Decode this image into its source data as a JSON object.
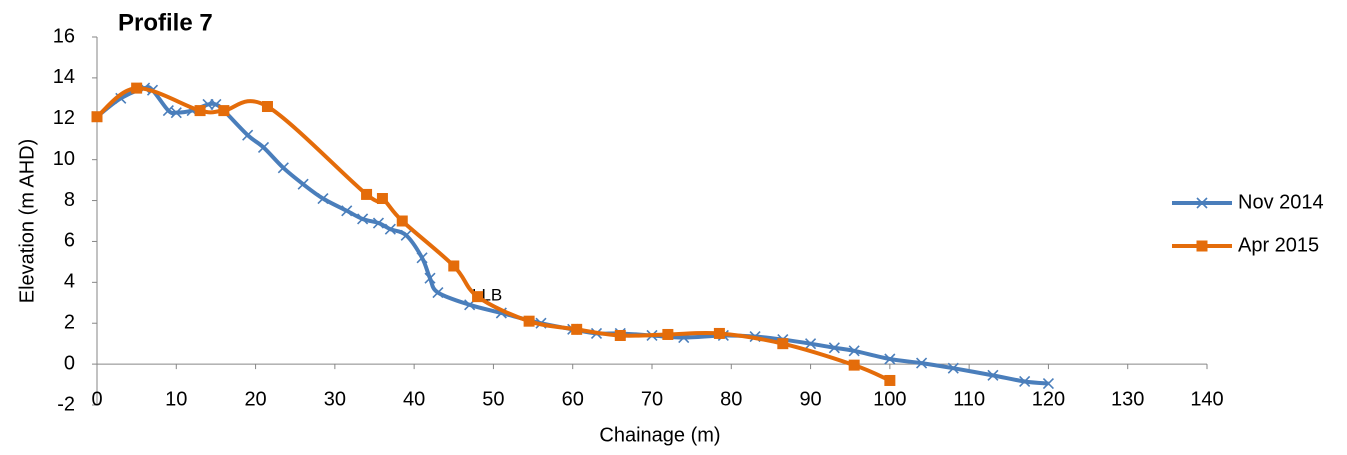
{
  "chart_data": {
    "type": "line",
    "title": "Profile 7",
    "x_label": "Chainage (m)",
    "y_label": "Elevation (m AHD)",
    "xlim": [
      0,
      140
    ],
    "xticks": [
      0,
      10,
      20,
      30,
      40,
      50,
      60,
      70,
      80,
      90,
      100,
      110,
      120,
      130,
      140
    ],
    "ylim": [
      -2,
      16
    ],
    "yticks": [
      -2,
      0,
      2,
      4,
      6,
      8,
      10,
      12,
      14,
      16
    ],
    "legend": "right",
    "smooth": true,
    "annotations": [
      {
        "text": "LLB"
      }
    ],
    "series": [
      {
        "name": "Nov 2014",
        "color": "#4a7ebb",
        "marker": "x",
        "x": [
          0,
          3,
          6,
          7,
          9,
          10,
          12,
          14,
          15,
          16,
          19,
          21,
          23.5,
          26,
          28.5,
          31.5,
          33.5,
          35.5,
          37,
          39,
          41,
          42,
          43,
          47,
          51,
          56,
          60,
          63,
          66,
          70,
          74,
          79,
          83,
          86.5,
          90,
          93,
          95.5,
          100,
          104,
          108,
          113,
          117,
          120
        ],
        "values": [
          12.1,
          13,
          13.5,
          13.4,
          12.4,
          12.3,
          12.4,
          12.7,
          12.7,
          12.4,
          11.2,
          10.6,
          9.6,
          8.8,
          8.1,
          7.5,
          7.1,
          6.9,
          6.6,
          6.3,
          5.2,
          4.2,
          3.5,
          2.9,
          2.5,
          2.0,
          1.7,
          1.5,
          1.5,
          1.4,
          1.3,
          1.4,
          1.35,
          1.2,
          1.0,
          0.8,
          0.65,
          0.25,
          0.05,
          -0.2,
          -0.55,
          -0.85,
          -0.95
        ]
      },
      {
        "name": "Apr 2015",
        "color": "#e46c0a",
        "marker": "square",
        "x": [
          0,
          5,
          13,
          16,
          21.5,
          34,
          36,
          38.5,
          45,
          48,
          54.5,
          60.5,
          66,
          72,
          78.5,
          86.5,
          95.5,
          100
        ],
        "values": [
          12.1,
          13.5,
          12.4,
          12.4,
          12.6,
          8.3,
          8.1,
          7.0,
          4.8,
          3.3,
          2.1,
          1.7,
          1.4,
          1.45,
          1.5,
          1.0,
          -0.05,
          -0.8
        ]
      }
    ]
  }
}
